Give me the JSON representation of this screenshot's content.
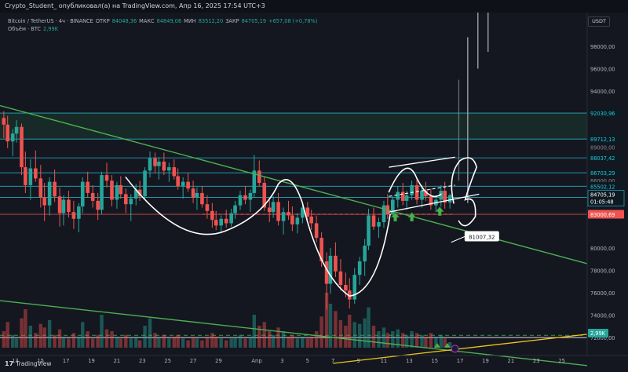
{
  "header": {
    "publish_line": "Crypto_Student_ опубликовал(а) на TradingView.com, Апр 16, 2025 17:54 UTC+3"
  },
  "legend": {
    "symbol_line": "Bitcoin / TetherUS · 4ч · BINANCE",
    "open_label": "ОТКР",
    "open_value": "84048,36",
    "high_label": "МАКС",
    "high_value": "84849,06",
    "low_label": "МИН",
    "low_value": "83512,20",
    "close_label": "ЗАКР",
    "close_value": "84705,19",
    "change": "+657,08 (+0,78%)",
    "volume_label": "Объём · BTC",
    "volume_value": "2,99K"
  },
  "currency_button": "USDT",
  "footer": {
    "logo_mark": "17",
    "logo_text": "TradingView"
  },
  "colors": {
    "background": "#141720",
    "up": "#26a69a",
    "down": "#ef5350",
    "trendline": "#4caf50",
    "level_cyan": "#26c6da",
    "support_red": "#ef5350",
    "yellow_line": "#f0c419",
    "drawing_white": "#ffffff"
  },
  "chart_data": {
    "type": "candlestick",
    "title": "Bitcoin / TetherUS · 4ч · BINANCE",
    "ylim": [
      70000,
      100000
    ],
    "y_ticks": [
      72000,
      74000,
      76000,
      78000,
      80000,
      94000,
      96000,
      98000
    ],
    "y_tick_labels": [
      "72000,00",
      "74000,00",
      "76000,00",
      "78000,00",
      "80000,00",
      "94000,00",
      "96000,00",
      "98000,00"
    ],
    "x_tick_labels": [
      "13",
      "15",
      "17",
      "19",
      "21",
      "23",
      "25",
      "27",
      "29",
      "Апр",
      "3",
      "5",
      "7",
      "9",
      "11",
      "13",
      "15",
      "17",
      "19",
      "21",
      "23",
      "25"
    ],
    "x_tick_days": [
      -18,
      -16,
      -14,
      -12,
      -10,
      -8,
      -6,
      -4,
      -2,
      1,
      3,
      5,
      7,
      9,
      11,
      13,
      15,
      17,
      19,
      21,
      23,
      25
    ],
    "x_day_range": [
      -19.2,
      27.0
    ],
    "horizontal_levels": [
      {
        "price": 92030.96,
        "label": "92030,96",
        "color": "#26c6da"
      },
      {
        "price": 89712.13,
        "label": "89712,13",
        "color": "#26c6da"
      },
      {
        "price": 88037.42,
        "label": "88037,42",
        "color": "#26c6da"
      },
      {
        "price": 86703.29,
        "label": "86703,29",
        "color": "#26c6da"
      },
      {
        "price": 85502.12,
        "label": "85502,12",
        "color": "#26c6da"
      },
      {
        "price": 84504.18,
        "label": "84504,18",
        "color": "#26c6da"
      },
      {
        "price": 83000.69,
        "label": "83000,69",
        "color": "#ef5350"
      },
      {
        "price": 72000,
        "label": "",
        "color": "#ffffff"
      }
    ],
    "partial_labels": [
      "89000,00",
      "86000,00"
    ],
    "current_price": {
      "price": 84705.19,
      "label": "84705,19",
      "countdown": "01:05:48"
    },
    "volume_badge": "2,99K",
    "annotation": {
      "text": "81007,32",
      "price": 81007.32
    },
    "candles": [
      [
        -18.9,
        91600,
        92200,
        89800,
        91000
      ],
      [
        -18.6,
        91000,
        91800,
        88900,
        89500
      ],
      [
        -18.2,
        89500,
        90600,
        88200,
        90200
      ],
      [
        -17.9,
        90200,
        91400,
        89400,
        90800
      ],
      [
        -17.5,
        90800,
        91100,
        86500,
        87200
      ],
      [
        -17.2,
        87200,
        88600,
        84900,
        85600
      ],
      [
        -16.8,
        85600,
        87900,
        84300,
        87100
      ],
      [
        -16.4,
        87100,
        88700,
        85900,
        86200
      ],
      [
        -16.0,
        86200,
        87400,
        83600,
        84500
      ],
      [
        -15.7,
        84500,
        85800,
        82400,
        83800
      ],
      [
        -15.3,
        83800,
        86300,
        82900,
        85900
      ],
      [
        -14.9,
        85900,
        87000,
        84100,
        84600
      ],
      [
        -14.5,
        84600,
        85400,
        81900,
        83100
      ],
      [
        -14.2,
        83100,
        84700,
        82000,
        84300
      ],
      [
        -13.8,
        84300,
        85100,
        82700,
        83200
      ],
      [
        -13.4,
        83200,
        84200,
        81700,
        82600
      ],
      [
        -13.0,
        82600,
        84000,
        81400,
        83700
      ],
      [
        -12.7,
        83700,
        86300,
        83100,
        85900
      ],
      [
        -12.3,
        85900,
        86800,
        84500,
        84900
      ],
      [
        -11.9,
        84900,
        85600,
        83600,
        84200
      ],
      [
        -11.5,
        84200,
        84900,
        82500,
        83400
      ],
      [
        -11.2,
        83400,
        86800,
        83000,
        86500
      ],
      [
        -10.8,
        86500,
        87600,
        85400,
        86000
      ],
      [
        -10.4,
        86000,
        86500,
        83700,
        84300
      ],
      [
        -10.0,
        84300,
        85900,
        83500,
        85600
      ],
      [
        -9.7,
        85600,
        86400,
        84400,
        84800
      ],
      [
        -9.3,
        84800,
        85300,
        83100,
        83900
      ],
      [
        -8.9,
        83900,
        84800,
        82400,
        84400
      ],
      [
        -8.5,
        84400,
        85700,
        83800,
        85200
      ],
      [
        -8.2,
        85200,
        86000,
        84200,
        84600
      ],
      [
        -7.8,
        84600,
        87200,
        84300,
        86900
      ],
      [
        -7.4,
        86900,
        88600,
        86300,
        88000
      ],
      [
        -7.0,
        88000,
        88500,
        86700,
        87300
      ],
      [
        -6.7,
        87300,
        88100,
        86100,
        87700
      ],
      [
        -6.3,
        87700,
        88500,
        86500,
        86900
      ],
      [
        -5.9,
        86900,
        87600,
        85900,
        87200
      ],
      [
        -5.5,
        87200,
        87900,
        86100,
        86400
      ],
      [
        -5.2,
        86400,
        87100,
        85200,
        85500
      ],
      [
        -4.8,
        85500,
        86300,
        84400,
        85900
      ],
      [
        -4.4,
        85900,
        86700,
        85000,
        85300
      ],
      [
        -4.0,
        85300,
        86000,
        84000,
        84500
      ],
      [
        -3.7,
        84500,
        85400,
        83400,
        84900
      ],
      [
        -3.3,
        84900,
        85500,
        83600,
        83900
      ],
      [
        -2.9,
        83900,
        84700,
        82600,
        83300
      ],
      [
        -2.5,
        83300,
        84000,
        81800,
        82500
      ],
      [
        -2.2,
        82500,
        83300,
        81600,
        82000
      ],
      [
        -1.8,
        82000,
        82900,
        81300,
        82600
      ],
      [
        -1.4,
        82600,
        83400,
        81800,
        82200
      ],
      [
        -1.0,
        82200,
        83500,
        81900,
        83100
      ],
      [
        -0.7,
        83100,
        84200,
        82600,
        83800
      ],
      [
        -0.3,
        83800,
        85100,
        83400,
        84700
      ],
      [
        0.1,
        84700,
        85500,
        83900,
        84300
      ],
      [
        0.5,
        84300,
        85200,
        83200,
        84900
      ],
      [
        0.8,
        84900,
        88300,
        84500,
        86900
      ],
      [
        1.2,
        86900,
        87800,
        85500,
        85800
      ],
      [
        1.6,
        85800,
        86400,
        83300,
        83600
      ],
      [
        2.0,
        83600,
        84500,
        82300,
        83200
      ],
      [
        2.3,
        83200,
        84600,
        82700,
        84100
      ],
      [
        2.7,
        84100,
        84900,
        82000,
        82400
      ],
      [
        3.1,
        82400,
        83600,
        81200,
        83200
      ],
      [
        3.5,
        83200,
        84200,
        82500,
        82900
      ],
      [
        3.8,
        82900,
        83700,
        81500,
        82100
      ],
      [
        4.2,
        82100,
        83100,
        81300,
        82700
      ],
      [
        4.6,
        82700,
        84000,
        82200,
        83600
      ],
      [
        5.0,
        83600,
        84100,
        82500,
        82800
      ],
      [
        5.3,
        82800,
        83400,
        81600,
        82200
      ],
      [
        5.7,
        82200,
        82900,
        80500,
        80900
      ],
      [
        6.1,
        80900,
        81400,
        78300,
        78800
      ],
      [
        6.5,
        78800,
        79600,
        74500,
        76800
      ],
      [
        6.8,
        76800,
        80000,
        75900,
        79300
      ],
      [
        7.2,
        79300,
        80500,
        77400,
        77900
      ],
      [
        7.6,
        77900,
        79000,
        76200,
        76700
      ],
      [
        8.0,
        76700,
        77800,
        75600,
        76200
      ],
      [
        8.3,
        76200,
        77300,
        74600,
        75400
      ],
      [
        8.7,
        75400,
        78200,
        75000,
        77600
      ],
      [
        9.1,
        77600,
        79200,
        76700,
        78800
      ],
      [
        9.5,
        78800,
        80800,
        77500,
        80200
      ],
      [
        9.8,
        80200,
        83500,
        79800,
        82900
      ],
      [
        10.2,
        82900,
        83600,
        81600,
        81900
      ],
      [
        10.6,
        81900,
        82700,
        80900,
        82300
      ],
      [
        11.0,
        82300,
        84200,
        81800,
        83800
      ],
      [
        11.3,
        83800,
        84800,
        82600,
        83000
      ],
      [
        11.7,
        83000,
        84600,
        82800,
        84300
      ],
      [
        12.1,
        84300,
        85500,
        83600,
        85000
      ],
      [
        12.5,
        85000,
        85800,
        83800,
        84200
      ],
      [
        12.8,
        84200,
        85100,
        83400,
        84700
      ],
      [
        13.2,
        84700,
        86000,
        84300,
        85600
      ],
      [
        13.6,
        85600,
        86100,
        83900,
        84300
      ],
      [
        14.0,
        84300,
        85600,
        83600,
        85100
      ],
      [
        14.3,
        85100,
        85900,
        84200,
        84600
      ],
      [
        14.7,
        84600,
        85300,
        83400,
        83800
      ],
      [
        15.1,
        83800,
        84700,
        83200,
        84300
      ],
      [
        15.5,
        84300,
        85600,
        83700,
        85100
      ],
      [
        15.8,
        85100,
        85900,
        83500,
        84048
      ],
      [
        16.2,
        84048,
        84849,
        83512,
        84705
      ]
    ],
    "volumes": [
      [
        -18.9,
        9
      ],
      [
        -18.6,
        14
      ],
      [
        -18.2,
        7
      ],
      [
        -17.9,
        5
      ],
      [
        -17.5,
        16
      ],
      [
        -17.2,
        21
      ],
      [
        -16.8,
        12
      ],
      [
        -16.4,
        8
      ],
      [
        -16.0,
        13
      ],
      [
        -15.7,
        11
      ],
      [
        -15.3,
        15
      ],
      [
        -14.9,
        7
      ],
      [
        -14.5,
        10
      ],
      [
        -14.2,
        6
      ],
      [
        -13.8,
        5
      ],
      [
        -13.4,
        8
      ],
      [
        -13.0,
        6
      ],
      [
        -12.7,
        14
      ],
      [
        -12.3,
        9
      ],
      [
        -11.9,
        5
      ],
      [
        -11.5,
        7
      ],
      [
        -11.2,
        18
      ],
      [
        -10.8,
        10
      ],
      [
        -10.4,
        9
      ],
      [
        -10.0,
        6
      ],
      [
        -9.7,
        5
      ],
      [
        -9.3,
        7
      ],
      [
        -8.9,
        5
      ],
      [
        -8.5,
        6
      ],
      [
        -8.2,
        4
      ],
      [
        -7.8,
        12
      ],
      [
        -7.4,
        16
      ],
      [
        -7.0,
        8
      ],
      [
        -6.7,
        6
      ],
      [
        -6.3,
        7
      ],
      [
        -5.9,
        5
      ],
      [
        -5.5,
        6
      ],
      [
        -5.2,
        7
      ],
      [
        -4.8,
        5
      ],
      [
        -4.4,
        4
      ],
      [
        -4.0,
        6
      ],
      [
        -3.7,
        5
      ],
      [
        -3.3,
        4
      ],
      [
        -2.9,
        6
      ],
      [
        -2.5,
        8
      ],
      [
        -2.2,
        6
      ],
      [
        -1.8,
        5
      ],
      [
        -1.4,
        4
      ],
      [
        -1.0,
        5
      ],
      [
        -0.7,
        6
      ],
      [
        -0.3,
        7
      ],
      [
        0.1,
        5
      ],
      [
        0.5,
        6
      ],
      [
        0.8,
        18
      ],
      [
        1.2,
        12
      ],
      [
        1.6,
        14
      ],
      [
        2.0,
        9
      ],
      [
        2.3,
        7
      ],
      [
        2.7,
        11
      ],
      [
        3.1,
        9
      ],
      [
        3.5,
        6
      ],
      [
        3.8,
        7
      ],
      [
        4.2,
        5
      ],
      [
        4.6,
        6
      ],
      [
        5.0,
        5
      ],
      [
        5.3,
        6
      ],
      [
        5.7,
        9
      ],
      [
        6.1,
        17
      ],
      [
        6.5,
        30
      ],
      [
        6.8,
        24
      ],
      [
        7.2,
        20
      ],
      [
        7.6,
        15
      ],
      [
        8.0,
        12
      ],
      [
        8.3,
        18
      ],
      [
        8.7,
        14
      ],
      [
        9.1,
        13
      ],
      [
        9.5,
        16
      ],
      [
        9.8,
        22
      ],
      [
        10.2,
        12
      ],
      [
        10.6,
        9
      ],
      [
        11.0,
        11
      ],
      [
        11.3,
        8
      ],
      [
        11.7,
        9
      ],
      [
        12.1,
        10
      ],
      [
        12.5,
        8
      ],
      [
        12.8,
        7
      ],
      [
        13.2,
        9
      ],
      [
        13.6,
        8
      ],
      [
        14.0,
        7
      ],
      [
        14.3,
        6
      ],
      [
        14.7,
        8
      ],
      [
        15.1,
        6
      ],
      [
        15.5,
        7
      ],
      [
        15.8,
        5
      ],
      [
        16.2,
        3
      ]
    ]
  }
}
